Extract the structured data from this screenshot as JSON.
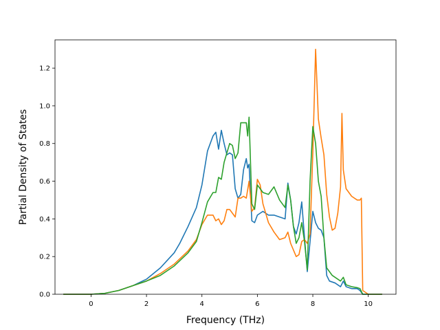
{
  "chart_data": {
    "type": "line",
    "xlabel": "Frequency (THz)",
    "ylabel": "Partial Density of States",
    "xlim": [
      -1.3,
      11.0
    ],
    "ylim": [
      0.0,
      1.35
    ],
    "xticks": [
      0,
      2,
      4,
      6,
      8,
      10
    ],
    "yticks": [
      0.0,
      0.2,
      0.4,
      0.6,
      0.8,
      1.0,
      1.2
    ],
    "xtick_labels": [
      "0",
      "2",
      "4",
      "6",
      "8",
      "10"
    ],
    "ytick_labels": [
      "0.0",
      "0.2",
      "0.4",
      "0.6",
      "0.8",
      "1.0",
      "1.2"
    ],
    "grid": false,
    "legend": "none",
    "series": [
      {
        "color": "#1f77b4",
        "x": [
          -1.0,
          0.0,
          0.5,
          1.0,
          1.5,
          2.0,
          2.5,
          3.0,
          3.2,
          3.5,
          3.8,
          4.0,
          4.2,
          4.4,
          4.5,
          4.6,
          4.7,
          4.8,
          4.9,
          5.0,
          5.1,
          5.2,
          5.3,
          5.4,
          5.5,
          5.6,
          5.65,
          5.7,
          5.8,
          5.9,
          6.0,
          6.2,
          6.4,
          6.6,
          6.8,
          7.0,
          7.1,
          7.2,
          7.3,
          7.4,
          7.5,
          7.6,
          7.7,
          7.8,
          7.9,
          8.0,
          8.1,
          8.2,
          8.3,
          8.4,
          8.5,
          8.6,
          8.8,
          9.0,
          9.1,
          9.2,
          9.4,
          9.6,
          9.7,
          9.8,
          10.0,
          10.5
        ],
        "y": [
          0.0,
          0.0,
          0.005,
          0.02,
          0.045,
          0.08,
          0.14,
          0.22,
          0.27,
          0.36,
          0.46,
          0.58,
          0.76,
          0.84,
          0.86,
          0.77,
          0.87,
          0.8,
          0.74,
          0.75,
          0.74,
          0.56,
          0.51,
          0.53,
          0.66,
          0.72,
          0.67,
          0.69,
          0.39,
          0.38,
          0.42,
          0.44,
          0.42,
          0.42,
          0.41,
          0.4,
          0.59,
          0.5,
          0.36,
          0.32,
          0.38,
          0.49,
          0.3,
          0.12,
          0.28,
          0.44,
          0.38,
          0.35,
          0.34,
          0.3,
          0.1,
          0.07,
          0.06,
          0.04,
          0.07,
          0.04,
          0.03,
          0.03,
          0.02,
          0.0,
          0.0,
          0.0
        ]
      },
      {
        "color": "#ff7f0e",
        "x": [
          -1.0,
          0.0,
          0.5,
          1.0,
          1.5,
          2.0,
          2.5,
          3.0,
          3.5,
          3.8,
          4.0,
          4.2,
          4.4,
          4.5,
          4.6,
          4.7,
          4.8,
          4.9,
          5.0,
          5.1,
          5.2,
          5.3,
          5.4,
          5.5,
          5.6,
          5.7,
          5.8,
          5.9,
          6.0,
          6.1,
          6.2,
          6.4,
          6.6,
          6.8,
          7.0,
          7.1,
          7.2,
          7.4,
          7.5,
          7.6,
          7.7,
          7.8,
          7.9,
          8.0,
          8.1,
          8.2,
          8.3,
          8.4,
          8.5,
          8.6,
          8.7,
          8.8,
          8.9,
          9.0,
          9.05,
          9.1,
          9.2,
          9.4,
          9.6,
          9.7,
          9.75,
          9.8,
          10.0,
          10.5
        ],
        "y": [
          0.0,
          0.0,
          0.005,
          0.02,
          0.045,
          0.07,
          0.11,
          0.16,
          0.23,
          0.29,
          0.37,
          0.42,
          0.42,
          0.39,
          0.4,
          0.37,
          0.39,
          0.45,
          0.45,
          0.43,
          0.41,
          0.51,
          0.51,
          0.52,
          0.51,
          0.6,
          0.44,
          0.46,
          0.61,
          0.58,
          0.48,
          0.38,
          0.33,
          0.29,
          0.3,
          0.33,
          0.27,
          0.2,
          0.21,
          0.28,
          0.29,
          0.27,
          0.32,
          0.75,
          1.3,
          0.93,
          0.83,
          0.74,
          0.53,
          0.41,
          0.34,
          0.35,
          0.43,
          0.57,
          0.96,
          0.66,
          0.56,
          0.52,
          0.5,
          0.5,
          0.51,
          0.02,
          0.0,
          0.0
        ]
      },
      {
        "color": "#2ca02c",
        "x": [
          -1.0,
          0.0,
          0.5,
          1.0,
          1.5,
          2.0,
          2.5,
          3.0,
          3.5,
          3.8,
          4.0,
          4.2,
          4.4,
          4.5,
          4.6,
          4.7,
          4.8,
          4.9,
          5.0,
          5.1,
          5.2,
          5.3,
          5.4,
          5.5,
          5.6,
          5.65,
          5.7,
          5.8,
          5.9,
          6.0,
          6.2,
          6.4,
          6.6,
          6.8,
          7.0,
          7.1,
          7.2,
          7.3,
          7.4,
          7.5,
          7.6,
          7.7,
          7.8,
          7.9,
          8.0,
          8.1,
          8.2,
          8.3,
          8.4,
          8.5,
          8.7,
          9.0,
          9.1,
          9.2,
          9.4,
          9.6,
          9.7,
          9.8,
          10.0,
          10.5
        ],
        "y": [
          0.0,
          0.0,
          0.005,
          0.02,
          0.045,
          0.07,
          0.1,
          0.15,
          0.22,
          0.28,
          0.38,
          0.49,
          0.54,
          0.54,
          0.62,
          0.61,
          0.7,
          0.75,
          0.8,
          0.79,
          0.72,
          0.75,
          0.91,
          0.91,
          0.91,
          0.84,
          0.94,
          0.48,
          0.45,
          0.58,
          0.54,
          0.53,
          0.57,
          0.5,
          0.46,
          0.58,
          0.5,
          0.36,
          0.27,
          0.3,
          0.38,
          0.28,
          0.13,
          0.6,
          0.89,
          0.8,
          0.6,
          0.52,
          0.3,
          0.14,
          0.1,
          0.07,
          0.09,
          0.05,
          0.04,
          0.035,
          0.03,
          0.0,
          0.0,
          0.0
        ]
      }
    ]
  }
}
